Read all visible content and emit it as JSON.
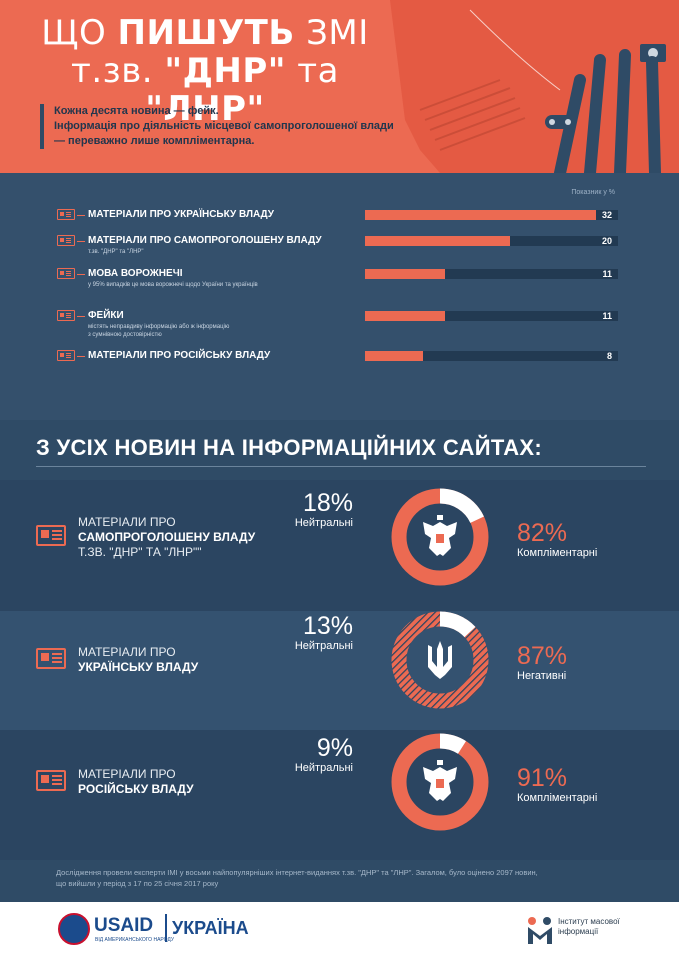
{
  "header": {
    "title_line1_pre": "ЩО ",
    "title_line1_bold": "ПИШУТЬ",
    "title_line1_post": " ЗМІ",
    "title_line2_pre": "т.зв. ",
    "title_line2_bold1": "\"ДНР\"",
    "title_line2_mid": " та ",
    "title_line2_bold2": "\"ЛНР\"",
    "lead_line1": "Кожна десята новина — фейк.",
    "lead_line2": "Інформація про діяльність місцевої самопроголошеної влади",
    "lead_line3": "— переважно лише компліментарна."
  },
  "chart_data": [
    {
      "type": "bar",
      "unit_label": "Показник у %",
      "xlim": [
        0,
        35
      ],
      "categories": [
        "МАТЕРІАЛИ ПРО УКРАЇНСЬКУ ВЛАДУ",
        "МАТЕРІАЛИ ПРО САМОПРОГОЛОШЕНУ ВЛАДУ",
        "МОВА ВОРОЖНЕЧІ",
        "ФЕЙКИ",
        "МАТЕРІАЛИ ПРО РОСІЙСЬКУ ВЛАДУ"
      ],
      "subtitles": [
        [],
        [
          "т.зв. \"ДНР\" та \"ЛНР\""
        ],
        [
          "у 95% випадків це мова ворожнечі щодо України та українців"
        ],
        [
          "містять неправдиву інформацію або ж інформацію",
          "з сумнівною достовірністю"
        ],
        []
      ],
      "values": [
        32,
        20,
        11,
        11,
        8
      ]
    },
    {
      "type": "pie",
      "title": "З УСІХ НОВИН НА ІНФОРМАЦІЙНИХ САЙТАХ:",
      "charts": [
        {
          "label_pre": "МАТЕРІАЛИ ПРО",
          "label_bold1": "САМОПРОГОЛОШЕНУ ВЛАДУ",
          "label_line3": "Т.ЗВ. \"ДНР\" ТА \"ЛНР\"\"",
          "neutral_value": 18,
          "neutral_pct": "18%",
          "neutral_label": "Нейтральні",
          "main_value": 82,
          "main_pct": "82%",
          "main_label": "Компліментарні",
          "emblem": "russian-eagle-emblem"
        },
        {
          "label_pre": "МАТЕРІАЛИ ПРО",
          "label_bold1": "УКРАЇНСЬКУ ВЛАДУ",
          "neutral_value": 13,
          "neutral_pct": "13%",
          "neutral_label": "Нейтральні",
          "main_value": 87,
          "main_pct": "87%",
          "main_label": "Негативні",
          "emblem": "ukrainian-trident-emblem"
        },
        {
          "label_pre": "МАТЕРІАЛИ ПРО",
          "label_bold1": "РОСІЙСЬКУ ВЛАДУ",
          "neutral_value": 9,
          "neutral_pct": "9%",
          "neutral_label": "Нейтральні",
          "main_value": 91,
          "main_pct": "91%",
          "main_label": "Компліментарні",
          "emblem": "russian-eagle-emblem"
        }
      ]
    }
  ],
  "footer": {
    "note_line1": "Дослідження провели експерти ІМІ у восьми найпопулярніших інтернет-виданнях т.зв. \"ДНР\" та \"ЛНР\". Загалом, було оцінено 2097 новин,",
    "note_line2": "що вийшли у період з 17 по 25 січня 2017 року",
    "usaid_word": "USAID",
    "usaid_sub": "ВІД АМЕРИКАНСЬКОГО НАРОДУ",
    "usaid_country": "УКРАЇНА",
    "imi_line1": "Інститут масової",
    "imi_line2": "інформації"
  },
  "colors": {
    "accent": "#ec6a52",
    "navy": "#2f4b66",
    "track": "#223a52",
    "neutral_ring": "#ffffff"
  }
}
